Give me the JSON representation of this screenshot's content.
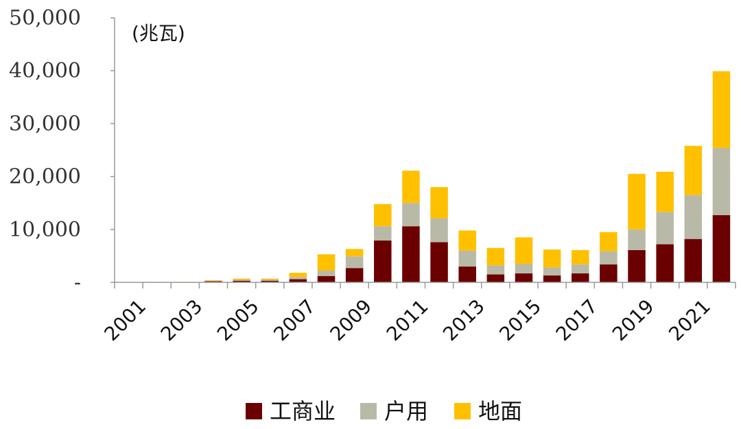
{
  "chart_data": {
    "type": "bar",
    "stacked": true,
    "unit_label": "(兆瓦)",
    "categories": [
      "2001",
      "2002",
      "2003",
      "2004",
      "2005",
      "2006",
      "2007",
      "2008",
      "2009",
      "2010",
      "2011",
      "2012",
      "2013",
      "2014",
      "2015",
      "2016",
      "2017",
      "2018",
      "2019",
      "2020",
      "2021",
      "2022"
    ],
    "x_tick_labels": [
      "2001",
      "2003",
      "2005",
      "2007",
      "2009",
      "2011",
      "2013",
      "2015",
      "2017",
      "2019",
      "2021"
    ],
    "y_tick_labels": [
      "-",
      "10,000",
      "20,000",
      "30,000",
      "40,000",
      "50,000"
    ],
    "ylim": [
      0,
      50000
    ],
    "grid": false,
    "legend_position": "bottom",
    "series": [
      {
        "name": "工商业",
        "color": "#6b0000",
        "values": [
          0,
          0,
          0,
          200,
          300,
          300,
          600,
          1200,
          2700,
          7900,
          10600,
          7600,
          3000,
          1500,
          1700,
          1300,
          1700,
          3400,
          6100,
          7200,
          8200,
          12700
        ]
      },
      {
        "name": "户用",
        "color": "#b9b9a8",
        "values": [
          0,
          0,
          0,
          100,
          200,
          200,
          400,
          1000,
          2200,
          2700,
          4400,
          4500,
          3000,
          1700,
          1800,
          1500,
          1700,
          2500,
          3900,
          6100,
          8300,
          12700
        ]
      },
      {
        "name": "地面",
        "color": "#ffc000",
        "values": [
          0,
          100,
          100,
          100,
          200,
          200,
          800,
          3100,
          1400,
          4200,
          6100,
          5900,
          3800,
          3300,
          5000,
          3400,
          2700,
          3600,
          10500,
          7600,
          9300,
          14500
        ]
      }
    ]
  }
}
